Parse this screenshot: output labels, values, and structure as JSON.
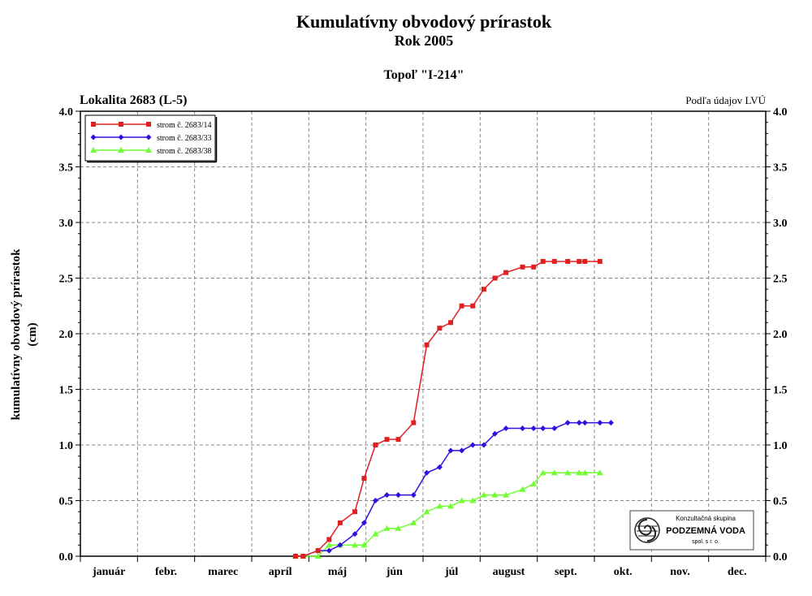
{
  "header": {
    "title": "Kumulatívny obvodový prírastok",
    "subtitle": "Rok 2005",
    "tree": "Topoľ \"I-214\"",
    "locality": "Lokalita 2683 (L-5)",
    "source_note": "Podľa údajov LVÚ"
  },
  "logo": {
    "line1": "Konzultačná skupina",
    "line2": "PODZEMNÁ VODA",
    "line3": "spol. s r. o."
  },
  "chart_data": {
    "type": "line",
    "ylabel_line1": "kumulatívny obvodový prírastok",
    "ylabel_line2": "(cm)",
    "xlabel": "",
    "ylim": [
      0,
      4
    ],
    "yticks": [
      "0.0",
      "0.5",
      "1.0",
      "1.5",
      "2.0",
      "2.5",
      "3.0",
      "3.5",
      "4.0"
    ],
    "months": [
      "január",
      "febr.",
      "marec",
      "apríl",
      "máj",
      "jún",
      "júl",
      "august",
      "sept.",
      "okt.",
      "nov.",
      "dec."
    ],
    "grid": true,
    "legend_position": "top-left",
    "series": [
      {
        "name": "strom č. 2683/14",
        "color": "#e02020",
        "marker": "square",
        "x": [
          "2005-04-24",
          "2005-04-28",
          "2005-05-06",
          "2005-05-12",
          "2005-05-18",
          "2005-05-26",
          "2005-05-31",
          "2005-06-06",
          "2005-06-12",
          "2005-06-18",
          "2005-06-26",
          "2005-07-03",
          "2005-07-10",
          "2005-07-16",
          "2005-07-22",
          "2005-07-28",
          "2005-08-03",
          "2005-08-09",
          "2005-08-15",
          "2005-08-24",
          "2005-08-30",
          "2005-09-04",
          "2005-09-10",
          "2005-09-17",
          "2005-09-23",
          "2005-09-26",
          "2005-10-04"
        ],
        "values": [
          0.0,
          0.0,
          0.05,
          0.15,
          0.3,
          0.4,
          0.7,
          1.0,
          1.05,
          1.05,
          1.2,
          1.9,
          2.05,
          2.1,
          2.25,
          2.25,
          2.4,
          2.5,
          2.55,
          2.6,
          2.6,
          2.65,
          2.65,
          2.65,
          2.65,
          2.65,
          2.65
        ]
      },
      {
        "name": "strom č. 2683/33",
        "color": "#3010e0",
        "marker": "diamond",
        "x": [
          "2005-04-24",
          "2005-04-28",
          "2005-05-06",
          "2005-05-12",
          "2005-05-18",
          "2005-05-26",
          "2005-05-31",
          "2005-06-06",
          "2005-06-12",
          "2005-06-18",
          "2005-06-26",
          "2005-07-03",
          "2005-07-10",
          "2005-07-16",
          "2005-07-22",
          "2005-07-28",
          "2005-08-03",
          "2005-08-09",
          "2005-08-15",
          "2005-08-24",
          "2005-08-30",
          "2005-09-04",
          "2005-09-10",
          "2005-09-17",
          "2005-09-23",
          "2005-09-26",
          "2005-10-04",
          "2005-10-10"
        ],
        "values": [
          0.0,
          0.0,
          0.05,
          0.05,
          0.1,
          0.2,
          0.3,
          0.5,
          0.55,
          0.55,
          0.55,
          0.75,
          0.8,
          0.95,
          0.95,
          1.0,
          1.0,
          1.1,
          1.15,
          1.15,
          1.15,
          1.15,
          1.15,
          1.2,
          1.2,
          1.2,
          1.2,
          1.2
        ]
      },
      {
        "name": "strom č. 2683/38",
        "color": "#70ff30",
        "marker": "triangle",
        "x": [
          "2005-04-24",
          "2005-04-28",
          "2005-05-06",
          "2005-05-12",
          "2005-05-18",
          "2005-05-26",
          "2005-05-31",
          "2005-06-06",
          "2005-06-12",
          "2005-06-18",
          "2005-06-26",
          "2005-07-03",
          "2005-07-10",
          "2005-07-16",
          "2005-07-22",
          "2005-07-28",
          "2005-08-03",
          "2005-08-09",
          "2005-08-15",
          "2005-08-24",
          "2005-08-30",
          "2005-09-04",
          "2005-09-10",
          "2005-09-17",
          "2005-09-23",
          "2005-09-26",
          "2005-10-04"
        ],
        "values": [
          0.0,
          0.0,
          0.0,
          0.1,
          0.1,
          0.1,
          0.1,
          0.2,
          0.25,
          0.25,
          0.3,
          0.4,
          0.45,
          0.45,
          0.5,
          0.5,
          0.55,
          0.55,
          0.55,
          0.6,
          0.65,
          0.75,
          0.75,
          0.75,
          0.75,
          0.75,
          0.75
        ]
      }
    ]
  }
}
